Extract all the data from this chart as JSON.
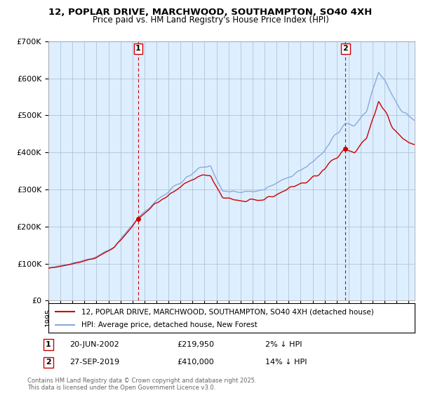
{
  "title1": "12, POPLAR DRIVE, MARCHWOOD, SOUTHAMPTON, SO40 4XH",
  "title2": "Price paid vs. HM Land Registry's House Price Index (HPI)",
  "ylim": [
    0,
    700000
  ],
  "yticks": [
    0,
    100000,
    200000,
    300000,
    400000,
    500000,
    600000,
    700000
  ],
  "ytick_labels": [
    "£0",
    "£100K",
    "£200K",
    "£300K",
    "£400K",
    "£500K",
    "£600K",
    "£700K"
  ],
  "legend_line1": "12, POPLAR DRIVE, MARCHWOOD, SOUTHAMPTON, SO40 4XH (detached house)",
  "legend_line2": "HPI: Average price, detached house, New Forest",
  "sale1_label": "1",
  "sale1_date": "20-JUN-2002",
  "sale1_price": "£219,950",
  "sale1_pct": "2% ↓ HPI",
  "sale2_label": "2",
  "sale2_date": "27-SEP-2019",
  "sale2_price": "£410,000",
  "sale2_pct": "14% ↓ HPI",
  "footnote": "Contains HM Land Registry data © Crown copyright and database right 2025.\nThis data is licensed under the Open Government Licence v3.0.",
  "hpi_color": "#88aadd",
  "price_color": "#cc0000",
  "vline_color": "#cc0000",
  "bg_color": "#ffffff",
  "chart_bg": "#ddeeff",
  "grid_color": "#aabbcc",
  "marker1_x": 2002.47,
  "marker2_x": 2019.74,
  "marker1_y": 219950,
  "marker2_y": 410000,
  "xmin": 1995,
  "xmax": 2025.5
}
